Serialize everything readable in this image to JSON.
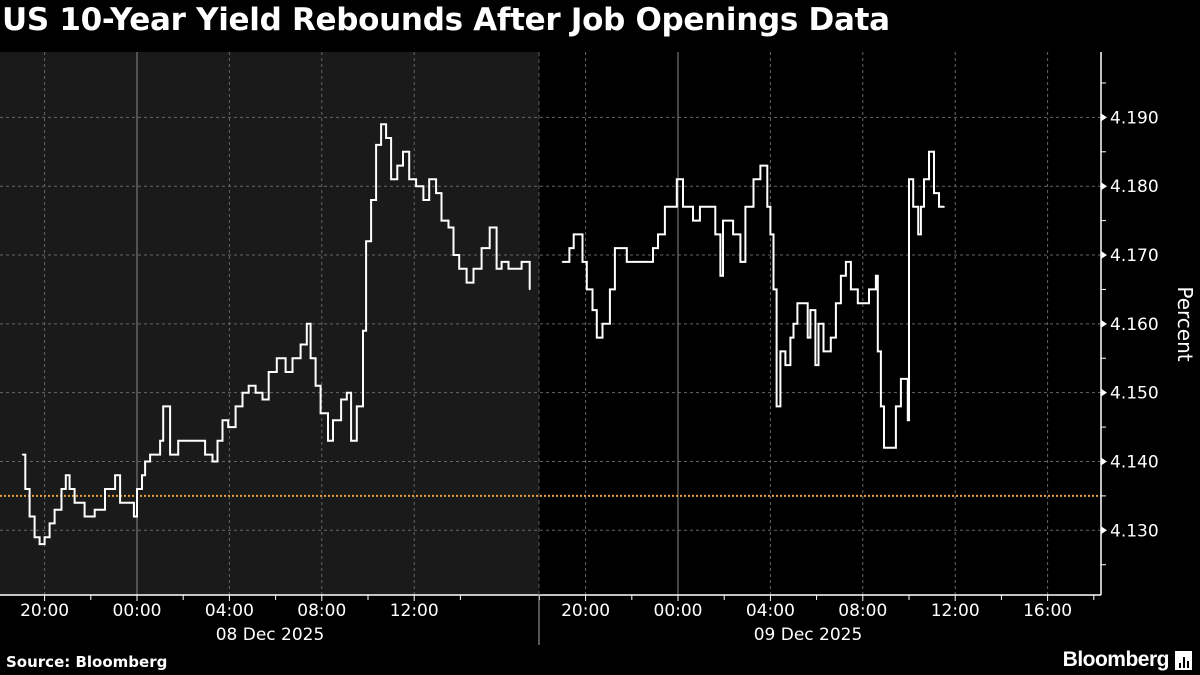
{
  "chart_data": {
    "type": "line",
    "title": "US 10-Year Yield Rebounds After Job Openings Data",
    "ylabel": "Percent",
    "xlabel": "",
    "ylim": [
      4.1206,
      4.1995
    ],
    "yticks": [
      "4.190",
      "4.180",
      "4.170",
      "4.160",
      "4.150",
      "4.140",
      "4.130"
    ],
    "grid": true,
    "legend": "none",
    "reference_line": {
      "value": 4.135,
      "color": "#e8a33a",
      "style": "dotted"
    },
    "colors": {
      "line": "#ffffff",
      "background": "#000000",
      "previous_session_shade": "#1a1a1a"
    },
    "panels": [
      {
        "date_label": "08 Dec 2025",
        "xticks": [
          "20:00",
          "00:00",
          "04:00",
          "08:00",
          "12:00"
        ],
        "points": [
          [
            "2025-12-07 19:03",
            4.141
          ],
          [
            "2025-12-07 19:10",
            4.136
          ],
          [
            "2025-12-07 19:21",
            4.132
          ],
          [
            "2025-12-07 19:34",
            4.129
          ],
          [
            "2025-12-07 19:47",
            4.128
          ],
          [
            "2025-12-07 20:00",
            4.129
          ],
          [
            "2025-12-07 20:13",
            4.131
          ],
          [
            "2025-12-07 20:26",
            4.133
          ],
          [
            "2025-12-07 20:44",
            4.136
          ],
          [
            "2025-12-07 20:55",
            4.138
          ],
          [
            "2025-12-07 21:05",
            4.136
          ],
          [
            "2025-12-07 21:18",
            4.134
          ],
          [
            "2025-12-07 21:44",
            4.132
          ],
          [
            "2025-12-07 22:10",
            4.133
          ],
          [
            "2025-12-07 22:37",
            4.136
          ],
          [
            "2025-12-07 23:03",
            4.138
          ],
          [
            "2025-12-07 23:16",
            4.134
          ],
          [
            "2025-12-07 23:42",
            4.134
          ],
          [
            "2025-12-07 23:52",
            4.132
          ],
          [
            "2025-12-08 00:00",
            4.136
          ],
          [
            "2025-12-08 00:13",
            4.138
          ],
          [
            "2025-12-08 00:21",
            4.14
          ],
          [
            "2025-12-08 00:34",
            4.141
          ],
          [
            "2025-12-08 01:00",
            4.143
          ],
          [
            "2025-12-08 01:08",
            4.148
          ],
          [
            "2025-12-08 01:26",
            4.141
          ],
          [
            "2025-12-08 01:47",
            4.143
          ],
          [
            "2025-12-08 02:05",
            4.143
          ],
          [
            "2025-12-08 02:31",
            4.143
          ],
          [
            "2025-12-08 02:57",
            4.141
          ],
          [
            "2025-12-08 03:16",
            4.14
          ],
          [
            "2025-12-08 03:29",
            4.143
          ],
          [
            "2025-12-08 03:42",
            4.146
          ],
          [
            "2025-12-08 03:57",
            4.145
          ],
          [
            "2025-12-08 04:16",
            4.148
          ],
          [
            "2025-12-08 04:34",
            4.15
          ],
          [
            "2025-12-08 04:50",
            4.151
          ],
          [
            "2025-12-08 05:08",
            4.15
          ],
          [
            "2025-12-08 05:26",
            4.149
          ],
          [
            "2025-12-08 05:42",
            4.153
          ],
          [
            "2025-12-08 06:03",
            4.155
          ],
          [
            "2025-12-08 06:26",
            4.153
          ],
          [
            "2025-12-08 06:44",
            4.155
          ],
          [
            "2025-12-08 07:05",
            4.157
          ],
          [
            "2025-12-08 07:21",
            4.16
          ],
          [
            "2025-12-08 07:31",
            4.155
          ],
          [
            "2025-12-08 07:44",
            4.151
          ],
          [
            "2025-12-08 07:57",
            4.147
          ],
          [
            "2025-12-08 08:16",
            4.143
          ],
          [
            "2025-12-08 08:29",
            4.146
          ],
          [
            "2025-12-08 08:50",
            4.149
          ],
          [
            "2025-12-08 09:05",
            4.15
          ],
          [
            "2025-12-08 09:16",
            4.143
          ],
          [
            "2025-12-08 09:31",
            4.148
          ],
          [
            "2025-12-08 09:47",
            4.159
          ],
          [
            "2025-12-08 09:55",
            4.172
          ],
          [
            "2025-12-08 10:08",
            4.178
          ],
          [
            "2025-12-08 10:21",
            4.186
          ],
          [
            "2025-12-08 10:34",
            4.189
          ],
          [
            "2025-12-08 10:47",
            4.187
          ],
          [
            "2025-12-08 11:00",
            4.181
          ],
          [
            "2025-12-08 11:16",
            4.183
          ],
          [
            "2025-12-08 11:31",
            4.185
          ],
          [
            "2025-12-08 11:47",
            4.181
          ],
          [
            "2025-12-08 12:05",
            4.18
          ],
          [
            "2025-12-08 12:24",
            4.178
          ],
          [
            "2025-12-08 12:39",
            4.181
          ],
          [
            "2025-12-08 12:57",
            4.179
          ],
          [
            "2025-12-08 13:11",
            4.175
          ],
          [
            "2025-12-08 13:29",
            4.174
          ],
          [
            "2025-12-08 13:42",
            4.17
          ],
          [
            "2025-12-08 13:57",
            4.168
          ],
          [
            "2025-12-08 14:16",
            4.166
          ],
          [
            "2025-12-08 14:34",
            4.168
          ],
          [
            "2025-12-08 14:55",
            4.171
          ],
          [
            "2025-12-08 15:16",
            4.174
          ],
          [
            "2025-12-08 15:34",
            4.168
          ],
          [
            "2025-12-08 15:47",
            4.169
          ],
          [
            "2025-12-08 16:05",
            4.168
          ],
          [
            "2025-12-08 16:26",
            4.168
          ],
          [
            "2025-12-08 16:39",
            4.169
          ],
          [
            "2025-12-08 17:00",
            4.165
          ]
        ]
      },
      {
        "date_label": "09 Dec 2025",
        "xticks": [
          "20:00",
          "00:00",
          "04:00",
          "08:00",
          "12:00",
          "16:00"
        ],
        "points": [
          [
            "2025-12-08 19:00",
            4.169
          ],
          [
            "2025-12-08 19:18",
            4.171
          ],
          [
            "2025-12-08 19:29",
            4.173
          ],
          [
            "2025-12-08 19:52",
            4.169
          ],
          [
            "2025-12-08 20:03",
            4.165
          ],
          [
            "2025-12-08 20:18",
            4.162
          ],
          [
            "2025-12-08 20:29",
            4.158
          ],
          [
            "2025-12-08 20:44",
            4.16
          ],
          [
            "2025-12-08 21:03",
            4.165
          ],
          [
            "2025-12-08 21:16",
            4.171
          ],
          [
            "2025-12-08 21:47",
            4.169
          ],
          [
            "2025-12-08 22:21",
            4.169
          ],
          [
            "2025-12-08 22:55",
            4.171
          ],
          [
            "2025-12-08 23:08",
            4.173
          ],
          [
            "2025-12-08 23:26",
            4.177
          ],
          [
            "2025-12-08 23:57",
            4.181
          ],
          [
            "2025-12-09 00:13",
            4.177
          ],
          [
            "2025-12-09 00:39",
            4.175
          ],
          [
            "2025-12-09 00:57",
            4.177
          ],
          [
            "2025-12-09 01:23",
            4.177
          ],
          [
            "2025-12-09 01:37",
            4.173
          ],
          [
            "2025-12-09 01:50",
            4.167
          ],
          [
            "2025-12-09 01:57",
            4.175
          ],
          [
            "2025-12-09 02:23",
            4.173
          ],
          [
            "2025-12-09 02:42",
            4.169
          ],
          [
            "2025-12-09 02:55",
            4.177
          ],
          [
            "2025-12-09 03:16",
            4.181
          ],
          [
            "2025-12-09 03:34",
            4.183
          ],
          [
            "2025-12-09 03:52",
            4.177
          ],
          [
            "2025-12-09 04:00",
            4.173
          ],
          [
            "2025-12-09 04:08",
            4.165
          ],
          [
            "2025-12-09 04:16",
            4.148
          ],
          [
            "2025-12-09 04:26",
            4.156
          ],
          [
            "2025-12-09 04:39",
            4.154
          ],
          [
            "2025-12-09 04:52",
            4.158
          ],
          [
            "2025-12-09 05:00",
            4.16
          ],
          [
            "2025-12-09 05:10",
            4.163
          ],
          [
            "2025-12-09 05:37",
            4.158
          ],
          [
            "2025-12-09 05:44",
            4.162
          ],
          [
            "2025-12-09 05:57",
            4.154
          ],
          [
            "2025-12-09 06:05",
            4.16
          ],
          [
            "2025-12-09 06:18",
            4.156
          ],
          [
            "2025-12-09 06:37",
            4.158
          ],
          [
            "2025-12-09 06:50",
            4.163
          ],
          [
            "2025-12-09 07:03",
            4.167
          ],
          [
            "2025-12-09 07:16",
            4.169
          ],
          [
            "2025-12-09 07:29",
            4.165
          ],
          [
            "2025-12-09 07:47",
            4.163
          ],
          [
            "2025-12-09 08:16",
            4.165
          ],
          [
            "2025-12-09 08:34",
            4.167
          ],
          [
            "2025-12-09 08:39",
            4.156
          ],
          [
            "2025-12-09 08:47",
            4.148
          ],
          [
            "2025-12-09 08:55",
            4.142
          ],
          [
            "2025-12-09 09:13",
            4.142
          ],
          [
            "2025-12-09 09:26",
            4.148
          ],
          [
            "2025-12-09 09:39",
            4.152
          ],
          [
            "2025-12-09 09:57",
            4.146
          ],
          [
            "2025-12-09 10:00",
            4.181
          ],
          [
            "2025-12-09 10:11",
            4.177
          ],
          [
            "2025-12-09 10:24",
            4.173
          ],
          [
            "2025-12-09 10:31",
            4.177
          ],
          [
            "2025-12-09 10:39",
            4.181
          ],
          [
            "2025-12-09 10:52",
            4.185
          ],
          [
            "2025-12-09 11:05",
            4.179
          ],
          [
            "2025-12-09 11:18",
            4.177
          ],
          [
            "2025-12-09 11:31",
            4.177
          ]
        ]
      }
    ]
  },
  "footer": {
    "source": "Source: Bloomberg",
    "logo": "Bloomberg"
  }
}
